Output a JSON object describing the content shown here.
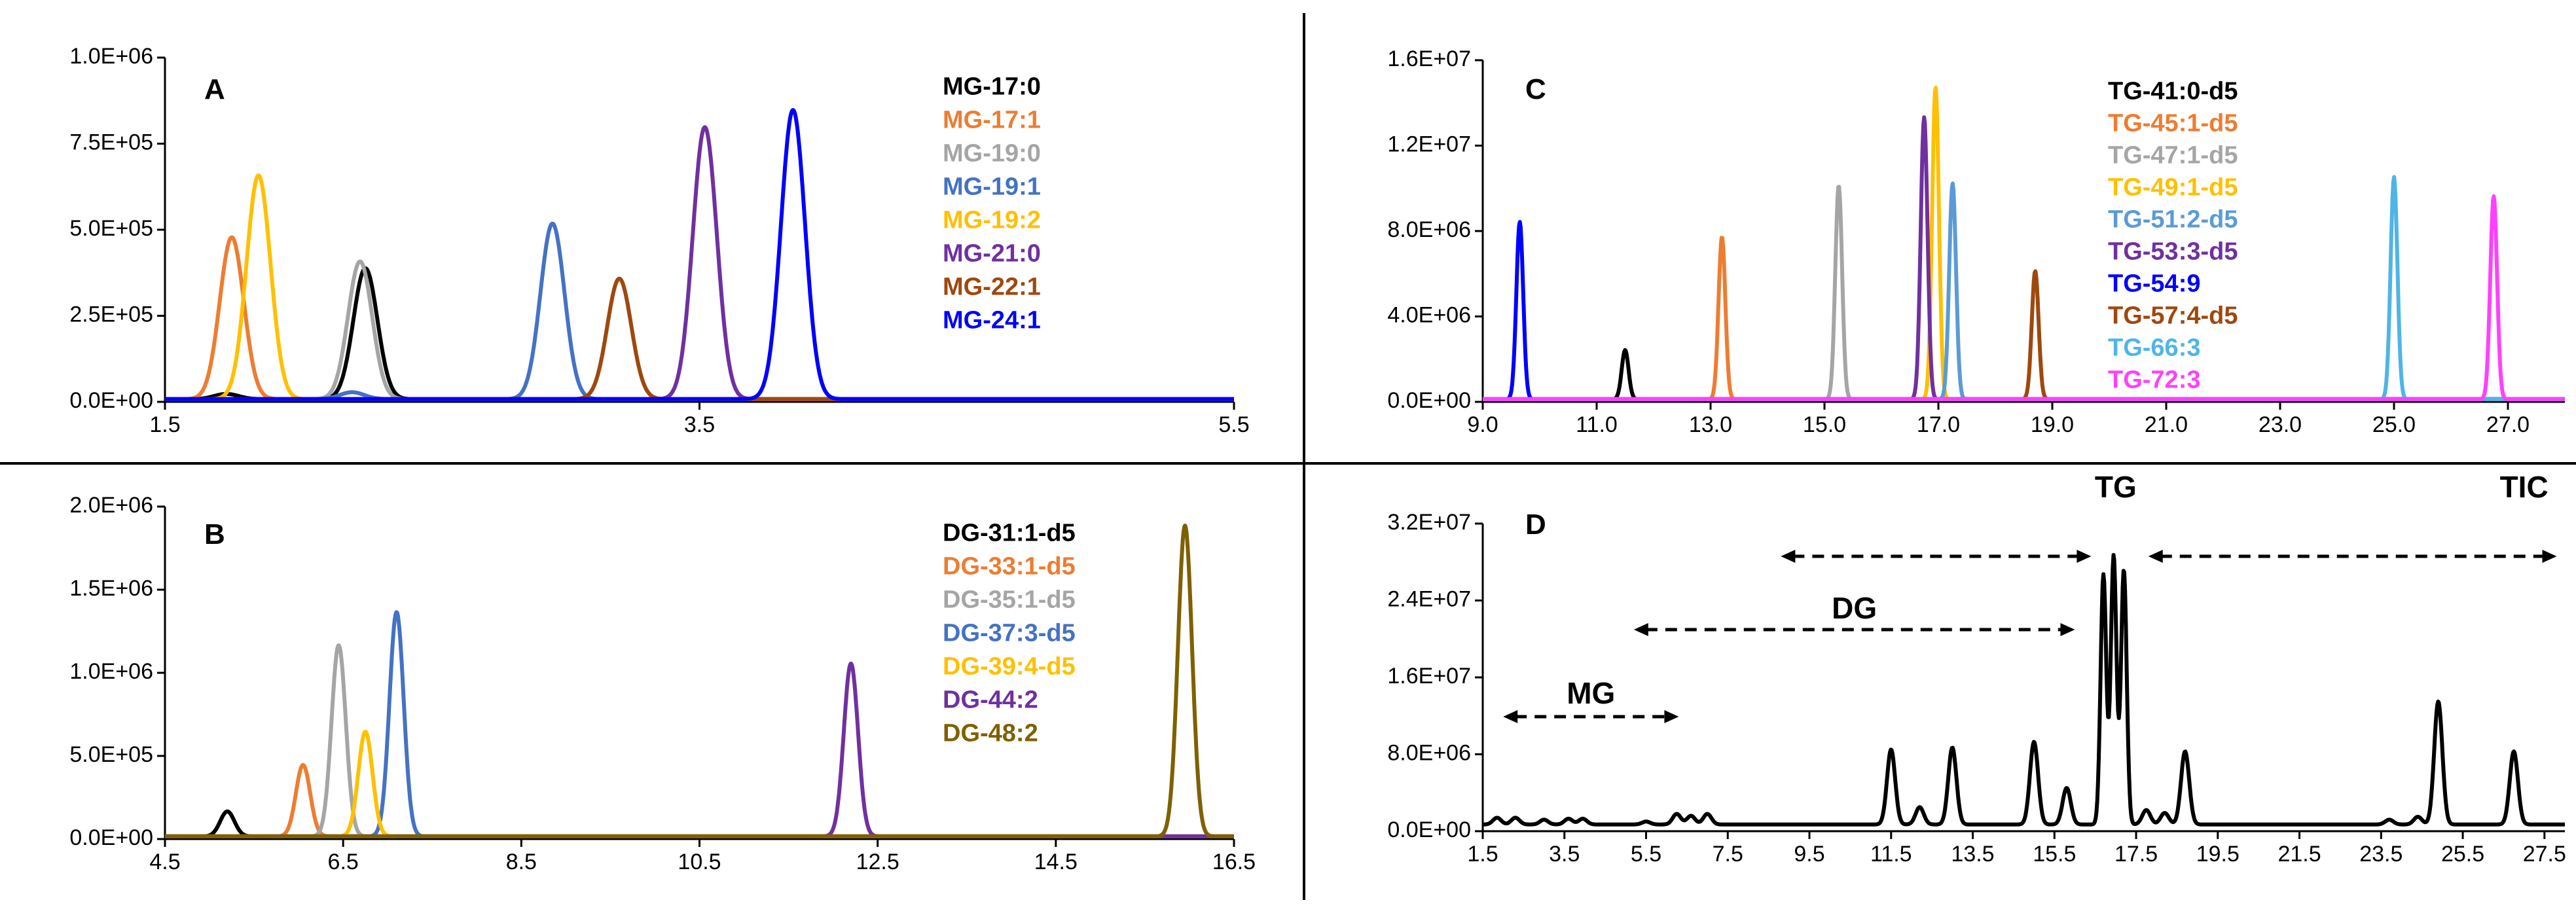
{
  "chart_data": [
    {
      "panel": "A",
      "type": "line",
      "xlim": [
        1.5,
        5.5
      ],
      "ylim": [
        0,
        1000000
      ],
      "xticks": [
        "1.5",
        "3.5",
        "5.5"
      ],
      "yticks": [
        "0.0E+00",
        "2.5E+05",
        "5.0E+05",
        "7.5E+05",
        "1.0E+06"
      ],
      "legend": "top-right",
      "series": [
        {
          "name": "MG-17:0",
          "color": "#000000",
          "peaks": [
            [
              1.73,
              15000
            ],
            [
              2.25,
              380000
            ]
          ]
        },
        {
          "name": "MG-17:1",
          "color": "#ED7D31",
          "peaks": [
            [
              1.75,
              470000
            ]
          ]
        },
        {
          "name": "MG-19:0",
          "color": "#A5A5A5",
          "peaks": [
            [
              2.23,
              400000
            ]
          ]
        },
        {
          "name": "MG-19:1",
          "color": "#4472C4",
          "peaks": [
            [
              2.2,
              20000
            ],
            [
              2.95,
              510000
            ]
          ]
        },
        {
          "name": "MG-19:2",
          "color": "#FFC000",
          "peaks": [
            [
              1.85,
              650000
            ]
          ]
        },
        {
          "name": "MG-21:0",
          "color": "#7030A0",
          "peaks": [
            [
              3.52,
              790000
            ]
          ]
        },
        {
          "name": "MG-22:1",
          "color": "#9E480E",
          "peaks": [
            [
              3.2,
              350000
            ]
          ]
        },
        {
          "name": "MG-24:1",
          "color": "#0000FF",
          "peaks": [
            [
              3.85,
              840000
            ]
          ]
        }
      ]
    },
    {
      "panel": "B",
      "type": "line",
      "xlim": [
        4.5,
        16.5
      ],
      "ylim": [
        0,
        2000000
      ],
      "xticks": [
        "4.5",
        "6.5",
        "8.5",
        "10.5",
        "12.5",
        "14.5",
        "16.5"
      ],
      "yticks": [
        "0.0E+00",
        "5.0E+05",
        "1.0E+06",
        "1.5E+06",
        "2.0E+06"
      ],
      "legend": "top-right",
      "series": [
        {
          "name": "DG-31:1-d5",
          "color": "#000000",
          "peaks": [
            [
              5.2,
              150000
            ]
          ]
        },
        {
          "name": "DG-33:1-d5",
          "color": "#ED7D31",
          "peaks": [
            [
              6.05,
              430000
            ]
          ]
        },
        {
          "name": "DG-35:1-d5",
          "color": "#A5A5A5",
          "peaks": [
            [
              6.45,
              1150000
            ]
          ]
        },
        {
          "name": "DG-37:3-d5",
          "color": "#4472C4",
          "peaks": [
            [
              7.1,
              1350000
            ]
          ]
        },
        {
          "name": "DG-39:4-d5",
          "color": "#FFC000",
          "peaks": [
            [
              6.75,
              630000
            ]
          ]
        },
        {
          "name": "DG-44:2",
          "color": "#7030A0",
          "peaks": [
            [
              12.2,
              1040000
            ]
          ]
        },
        {
          "name": "DG-48:2",
          "color": "#7F6000",
          "peaks": [
            [
              15.95,
              1870000
            ]
          ]
        }
      ]
    },
    {
      "panel": "C",
      "type": "line",
      "xlim": [
        9.0,
        28.0
      ],
      "ylim": [
        0,
        16000000
      ],
      "xticks": [
        "9.0",
        "11.0",
        "13.0",
        "15.0",
        "17.0",
        "19.0",
        "21.0",
        "23.0",
        "25.0",
        "27.0"
      ],
      "yticks": [
        "0.0E+00",
        "4.0E+06",
        "8.0E+06",
        "1.2E+07",
        "1.6E+07"
      ],
      "legend": "top-center",
      "series": [
        {
          "name": "TG-41:0-d5",
          "color": "#000000",
          "peaks": [
            [
              11.5,
              2300000
            ]
          ]
        },
        {
          "name": "TG-45:1-d5",
          "color": "#ED7D31",
          "peaks": [
            [
              13.2,
              7600000
            ]
          ]
        },
        {
          "name": "TG-47:1-d5",
          "color": "#A5A5A5",
          "peaks": [
            [
              15.25,
              10000000
            ]
          ]
        },
        {
          "name": "TG-49:1-d5",
          "color": "#FFC000",
          "peaks": [
            [
              16.95,
              14600000
            ]
          ]
        },
        {
          "name": "TG-51:2-d5",
          "color": "#5B9BD5",
          "peaks": [
            [
              17.25,
              10100000
            ]
          ]
        },
        {
          "name": "TG-53:3-d5",
          "color": "#7030A0",
          "peaks": [
            [
              16.75,
              13200000
            ]
          ]
        },
        {
          "name": "TG-54:9",
          "color": "#0000FF",
          "peaks": [
            [
              9.65,
              8300000
            ]
          ]
        },
        {
          "name": "TG-57:4-d5",
          "color": "#9E480E",
          "peaks": [
            [
              18.7,
              6000000
            ]
          ]
        },
        {
          "name": "TG-66:3",
          "color": "#4FB5E6",
          "peaks": [
            [
              25.0,
              10400000
            ]
          ]
        },
        {
          "name": "TG-72:3",
          "color": "#FF40FF",
          "peaks": [
            [
              26.75,
              9500000
            ]
          ]
        }
      ]
    },
    {
      "panel": "D",
      "type": "line",
      "xlim": [
        1.5,
        28.0
      ],
      "ylim": [
        0,
        32000000
      ],
      "xticks": [
        "1.5",
        "3.5",
        "5.5",
        "7.5",
        "9.5",
        "11.5",
        "13.5",
        "15.5",
        "17.5",
        "19.5",
        "21.5",
        "23.5",
        "25.5",
        "27.5"
      ],
      "yticks": [
        "0.0E+00",
        "8.0E+06",
        "1.6E+07",
        "2.4E+07",
        "3.2E+07"
      ],
      "annotations": {
        "mg": "MG",
        "dg": "DG",
        "tg": "TG",
        "tic": "TIC"
      },
      "annotation_ranges": {
        "mg": [
          2.0,
          6.3
        ],
        "dg": [
          5.2,
          16.0
        ],
        "tg_left": [
          8.8,
          16.4
        ],
        "tg_right": [
          17.8,
          27.8
        ]
      },
      "series": [
        {
          "name": "TIC",
          "color": "#000000",
          "baseline": 700000,
          "peaks": [
            [
              1.85,
              700000
            ],
            [
              2.3,
              700000
            ],
            [
              3.0,
              500000
            ],
            [
              3.6,
              600000
            ],
            [
              3.95,
              600000
            ],
            [
              5.5,
              300000
            ],
            [
              6.25,
              1100000
            ],
            [
              6.6,
              900000
            ],
            [
              7.0,
              1100000
            ],
            [
              11.5,
              7800000
            ],
            [
              12.2,
              1800000
            ],
            [
              13.0,
              8000000
            ],
            [
              15.0,
              8600000
            ],
            [
              15.8,
              3800000
            ],
            [
              16.7,
              26000000
            ],
            [
              16.95,
              28000000
            ],
            [
              17.2,
              26500000
            ],
            [
              17.75,
              1500000
            ],
            [
              18.2,
              1200000
            ],
            [
              18.7,
              7600000
            ],
            [
              23.7,
              500000
            ],
            [
              24.4,
              800000
            ],
            [
              24.9,
              12800000
            ],
            [
              26.75,
              7600000
            ]
          ]
        }
      ]
    }
  ]
}
